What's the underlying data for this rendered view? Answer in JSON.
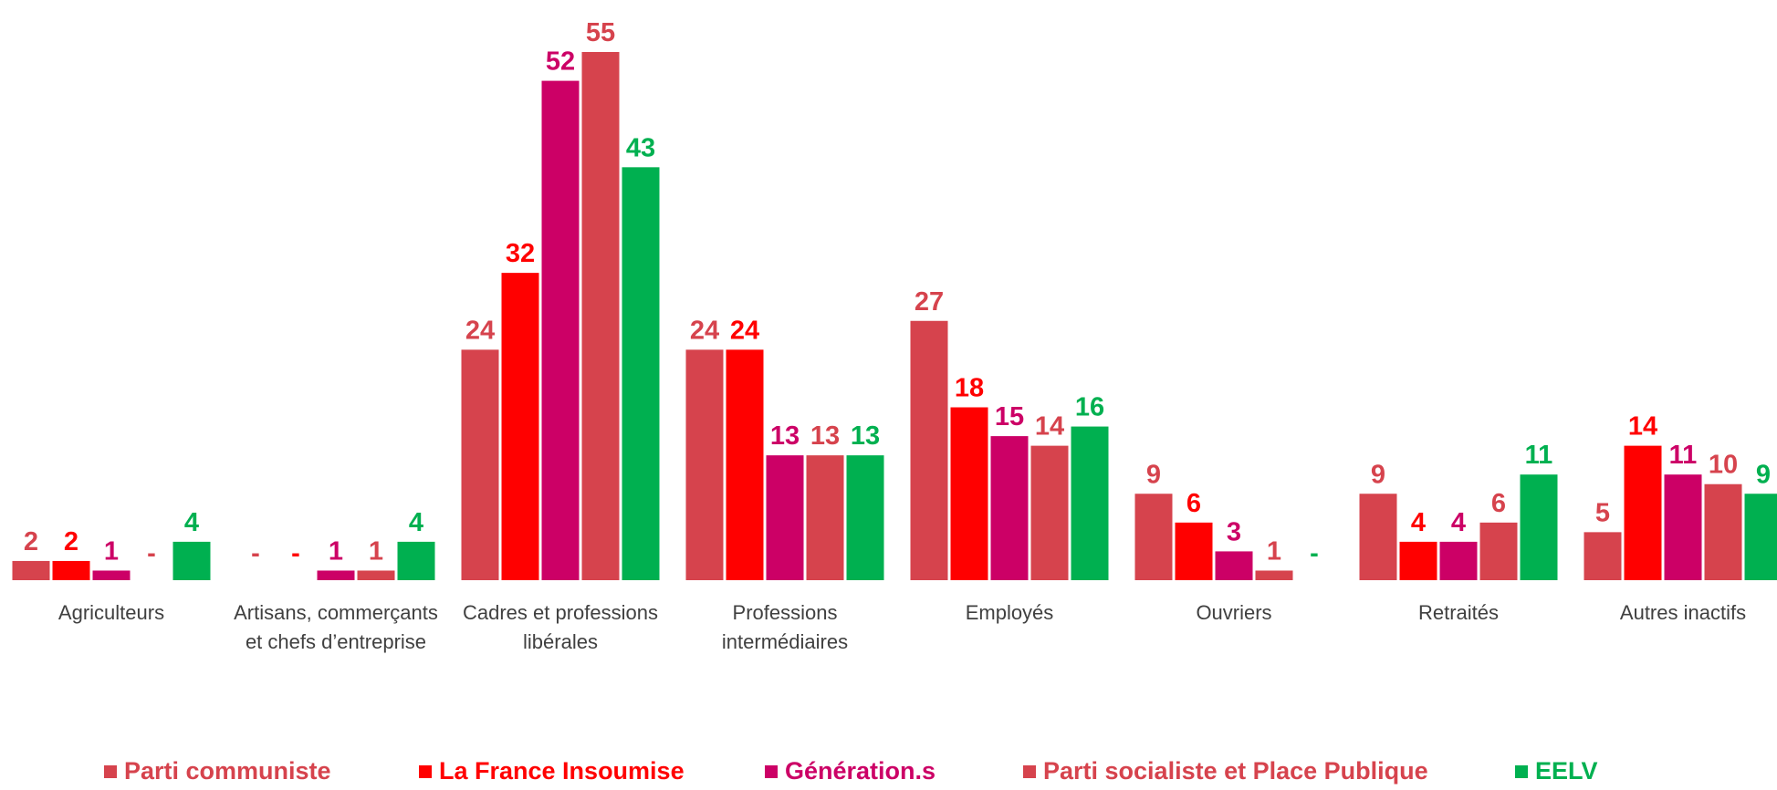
{
  "chart_data": {
    "type": "bar",
    "categories": [
      "Agriculteurs",
      "Artisans, commerçants et chefs d’entreprise",
      "Cadres et professions libérales",
      "Professions intermédiaires",
      "Employés",
      "Ouvriers",
      "Retraités",
      "Autres inactifs"
    ],
    "series": [
      {
        "name": "Parti communiste",
        "color": "#d6434d",
        "values": [
          2,
          null,
          24,
          24,
          27,
          9,
          9,
          5
        ],
        "value_labels": [
          "2",
          "-",
          "24",
          "24",
          "27",
          "9",
          "9",
          "5"
        ]
      },
      {
        "name": "La France Insoumise",
        "color": "#ff0000",
        "values": [
          2,
          null,
          32,
          24,
          18,
          6,
          4,
          14
        ],
        "value_labels": [
          "2",
          "-",
          "32",
          "24",
          "18",
          "6",
          "4",
          "14"
        ]
      },
      {
        "name": "Génération.s",
        "color": "#cc0066",
        "values": [
          1,
          1,
          52,
          13,
          15,
          3,
          4,
          11
        ],
        "value_labels": [
          "1",
          "1",
          "52",
          "13",
          "15",
          "3",
          "4",
          "11"
        ]
      },
      {
        "name": "Parti socialiste et Place Publique",
        "color": "#d6434d",
        "values": [
          null,
          1,
          55,
          13,
          14,
          1,
          6,
          10
        ],
        "value_labels": [
          "-",
          "1",
          "55",
          "13",
          "14",
          "1",
          "6",
          "10"
        ]
      },
      {
        "name": "EELV",
        "color": "#00b050",
        "values": [
          4,
          4,
          43,
          13,
          16,
          null,
          11,
          9
        ],
        "value_labels": [
          "4",
          "4",
          "43",
          "13",
          "16",
          "-",
          "11",
          "9"
        ]
      }
    ],
    "legend": "bottom"
  }
}
